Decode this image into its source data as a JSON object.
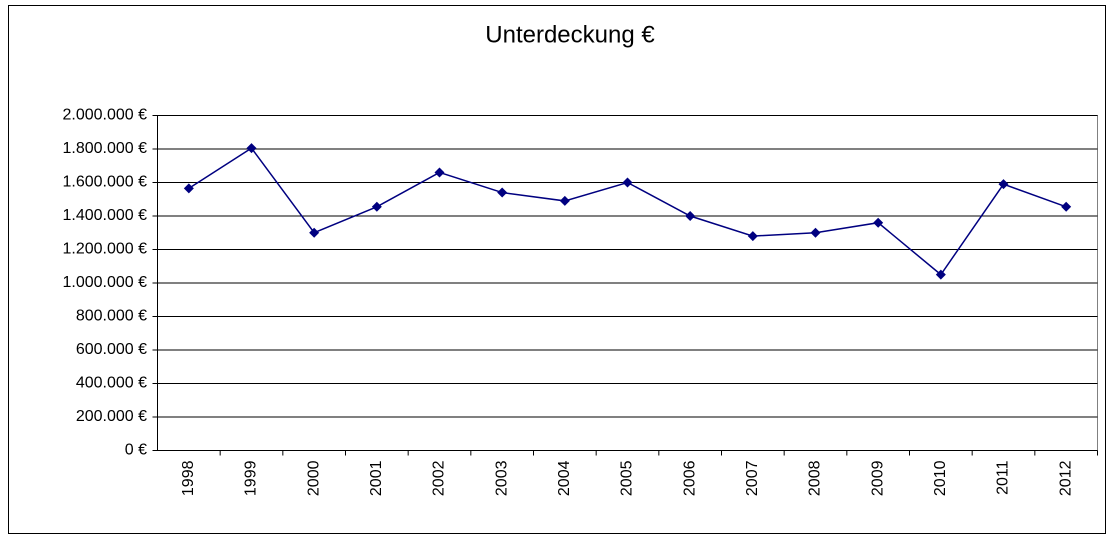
{
  "chart_data": {
    "type": "line",
    "title": "Unterdeckung €",
    "categories": [
      "1998",
      "1999",
      "2000",
      "2001",
      "2002",
      "2003",
      "2004",
      "2005",
      "2006",
      "2007",
      "2008",
      "2009",
      "2010",
      "2011",
      "2012"
    ],
    "series": [
      {
        "color": "#000080",
        "values": [
          1565000,
          1805000,
          1300000,
          1455000,
          1660000,
          1540000,
          1490000,
          1600000,
          1400000,
          1280000,
          1300000,
          1360000,
          1050000,
          1590000,
          1455000
        ]
      }
    ],
    "ylim": [
      0,
      2000000
    ],
    "yticks": [
      {
        "value": 0,
        "label": "0 €"
      },
      {
        "value": 200000,
        "label": "200.000 €"
      },
      {
        "value": 400000,
        "label": "400.000 €"
      },
      {
        "value": 600000,
        "label": "600.000 €"
      },
      {
        "value": 800000,
        "label": "800.000 €"
      },
      {
        "value": 1000000,
        "label": "1.000.000 €"
      },
      {
        "value": 1200000,
        "label": "1.200.000 €"
      },
      {
        "value": 1400000,
        "label": "1.400.000 €"
      },
      {
        "value": 1600000,
        "label": "1.600.000 €"
      },
      {
        "value": 1800000,
        "label": "1.800.000 €"
      },
      {
        "value": 2000000,
        "label": "2.000.000 €"
      }
    ],
    "grid": true
  }
}
